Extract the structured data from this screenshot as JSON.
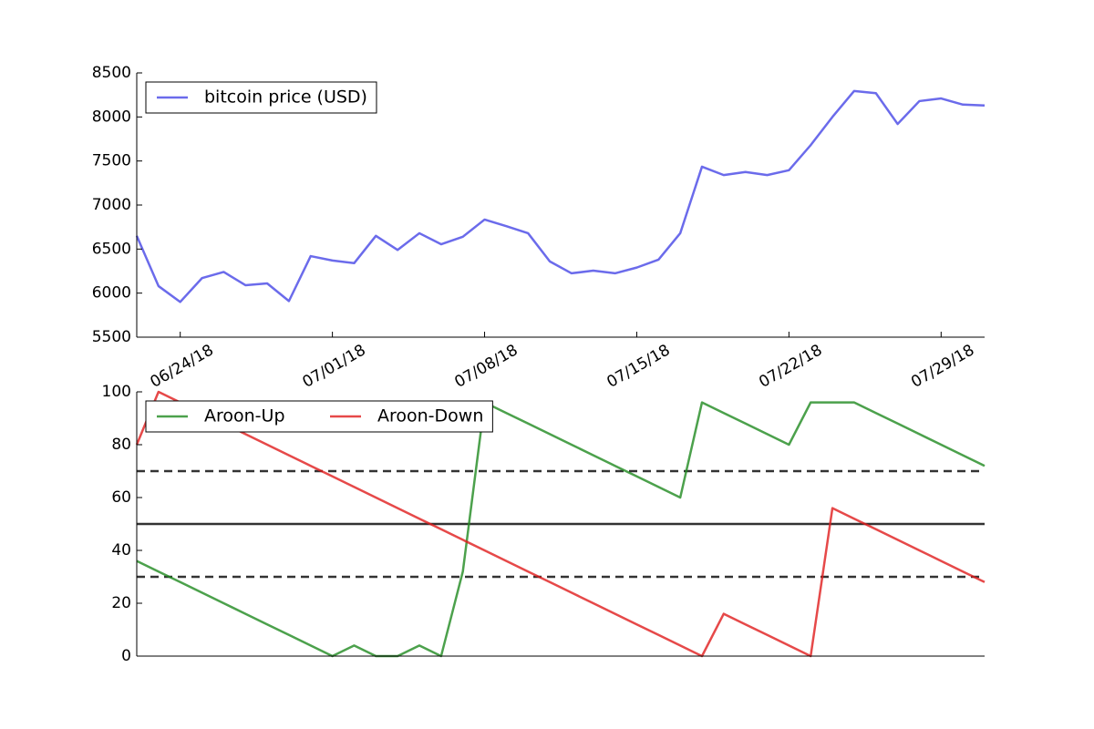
{
  "chart_data": [
    {
      "type": "line",
      "x": [
        "2018-06-22",
        "2018-06-23",
        "2018-06-24",
        "2018-06-25",
        "2018-06-26",
        "2018-06-27",
        "2018-06-28",
        "2018-06-29",
        "2018-06-30",
        "2018-07-01",
        "2018-07-02",
        "2018-07-03",
        "2018-07-04",
        "2018-07-05",
        "2018-07-06",
        "2018-07-07",
        "2018-07-08",
        "2018-07-09",
        "2018-07-10",
        "2018-07-11",
        "2018-07-12",
        "2018-07-13",
        "2018-07-14",
        "2018-07-15",
        "2018-07-16",
        "2018-07-17",
        "2018-07-18",
        "2018-07-19",
        "2018-07-20",
        "2018-07-21",
        "2018-07-22",
        "2018-07-23",
        "2018-07-24",
        "2018-07-25",
        "2018-07-26",
        "2018-07-27",
        "2018-07-28",
        "2018-07-29",
        "2018-07-30",
        "2018-07-31"
      ],
      "series": [
        {
          "name": "bitcoin price (USD)",
          "color": "#4646e6",
          "values": [
            6650,
            6080,
            5900,
            6170,
            6240,
            6090,
            6110,
            5910,
            6420,
            6370,
            6340,
            6650,
            6490,
            6680,
            6555,
            6640,
            6835,
            6760,
            6680,
            6360,
            6225,
            6255,
            6225,
            6290,
            6380,
            6680,
            7435,
            7340,
            7375,
            7340,
            7395,
            7680,
            8000,
            8295,
            8270,
            7920,
            8180,
            8210,
            8140,
            8130
          ]
        }
      ],
      "xlim": [
        "2018-06-22",
        "2018-07-31"
      ],
      "xticks": [
        {
          "value": "2018-06-24",
          "label": "06/24/18"
        },
        {
          "value": "2018-07-01",
          "label": "07/01/18"
        },
        {
          "value": "2018-07-08",
          "label": "07/08/18"
        },
        {
          "value": "2018-07-15",
          "label": "07/15/18"
        },
        {
          "value": "2018-07-22",
          "label": "07/22/18"
        },
        {
          "value": "2018-07-29",
          "label": "07/29/18"
        }
      ],
      "ylim": [
        5500,
        8500
      ],
      "yticks": [
        5500,
        6000,
        6500,
        7000,
        7500,
        8000,
        8500
      ],
      "legend": "upper left"
    },
    {
      "type": "line",
      "x": [
        "2018-06-22",
        "2018-06-23",
        "2018-06-24",
        "2018-06-25",
        "2018-06-26",
        "2018-06-27",
        "2018-06-28",
        "2018-06-29",
        "2018-06-30",
        "2018-07-01",
        "2018-07-02",
        "2018-07-03",
        "2018-07-04",
        "2018-07-05",
        "2018-07-06",
        "2018-07-07",
        "2018-07-08",
        "2018-07-09",
        "2018-07-10",
        "2018-07-11",
        "2018-07-12",
        "2018-07-13",
        "2018-07-14",
        "2018-07-15",
        "2018-07-16",
        "2018-07-17",
        "2018-07-18",
        "2018-07-19",
        "2018-07-20",
        "2018-07-21",
        "2018-07-22",
        "2018-07-23",
        "2018-07-24",
        "2018-07-25",
        "2018-07-26",
        "2018-07-27",
        "2018-07-28",
        "2018-07-29",
        "2018-07-30",
        "2018-07-31"
      ],
      "series": [
        {
          "name": "Aroon-Up",
          "color": "#1f8a1f",
          "values": [
            36,
            32,
            28,
            24,
            20,
            16,
            12,
            8,
            4,
            0,
            4,
            0,
            0,
            4,
            0,
            32,
            96,
            92,
            88,
            84,
            80,
            76,
            72,
            68,
            64,
            60,
            96,
            92,
            88,
            84,
            80,
            96,
            96,
            96,
            92,
            88,
            84,
            80,
            76,
            72
          ]
        },
        {
          "name": "Aroon-Down",
          "color": "#e01c1c",
          "values": [
            80,
            100,
            96,
            92,
            88,
            84,
            80,
            76,
            72,
            68,
            64,
            60,
            56,
            52,
            48,
            44,
            40,
            36,
            32,
            28,
            24,
            20,
            16,
            12,
            8,
            4,
            0,
            16,
            12,
            8,
            4,
            0,
            56,
            52,
            48,
            44,
            40,
            36,
            32,
            28
          ]
        }
      ],
      "xlim": [
        "2018-06-22",
        "2018-07-31"
      ],
      "ylim": [
        0,
        100
      ],
      "yticks": [
        0,
        20,
        40,
        60,
        80,
        100
      ],
      "hlines": [
        {
          "value": 70,
          "style": "dashed"
        },
        {
          "value": 50,
          "style": "solid"
        },
        {
          "value": 30,
          "style": "dashed"
        }
      ],
      "legend": "upper left",
      "legend_ncol": 2
    }
  ]
}
